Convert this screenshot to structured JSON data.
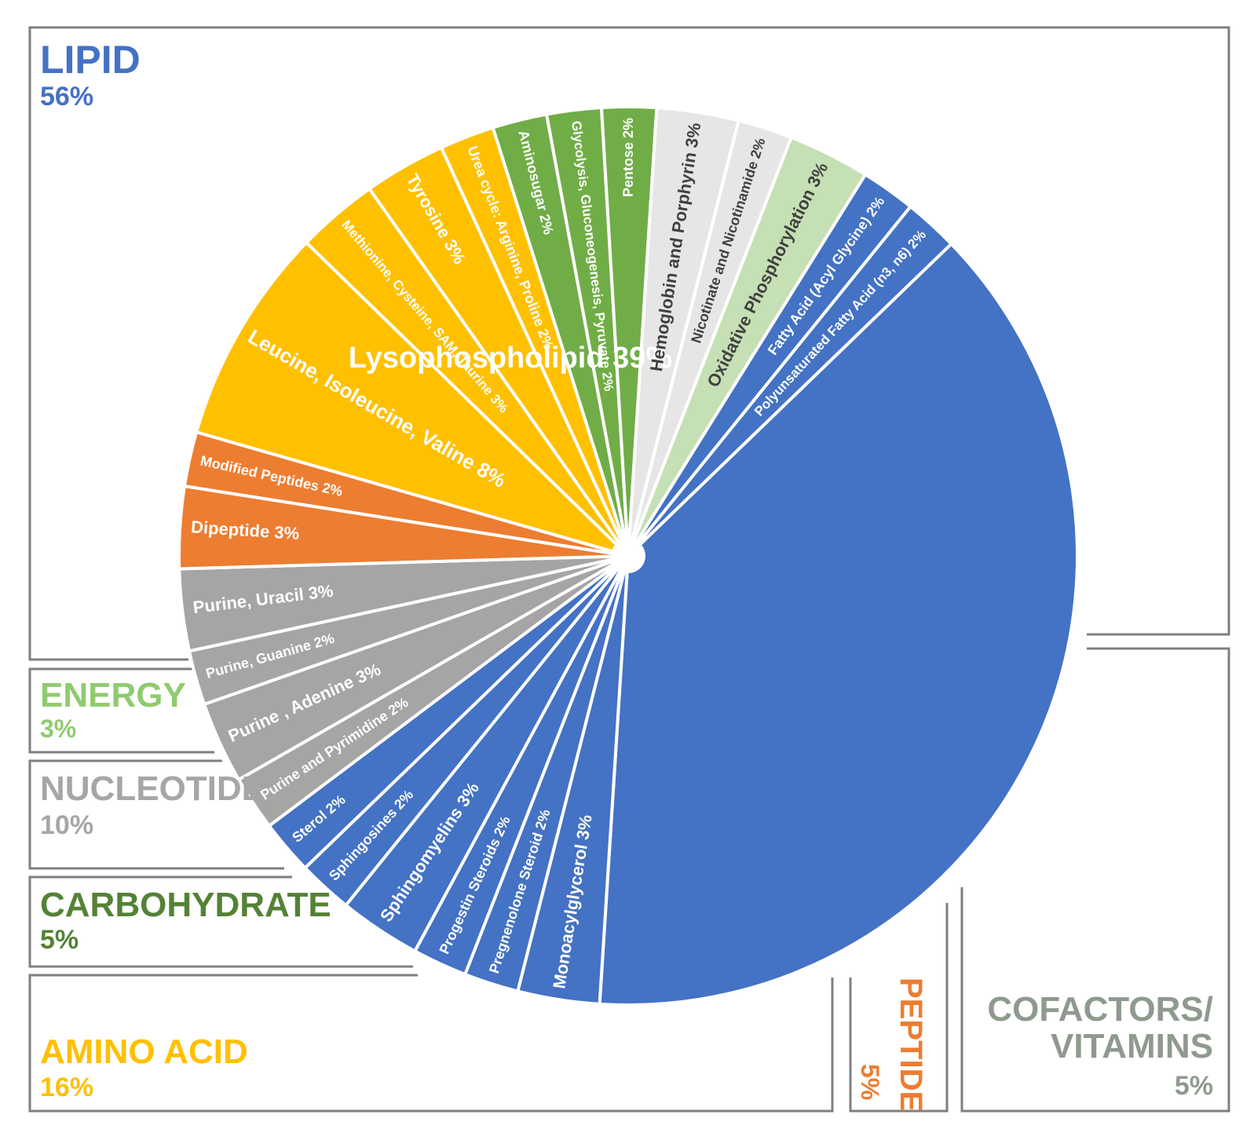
{
  "colors": {
    "lipid": "#4472C4",
    "energy": "#C5E0B4",
    "nucleotide_light": "#E7E6E6",
    "nucleotide_dark": "#A5A5A5",
    "carbohydrate": "#70AD47",
    "amino_acid": "#FFC000",
    "peptide": "#ED7D31",
    "energy_text": "#8FCB6E",
    "nucleotide_text": "#A6A6A6",
    "carbohydrate_text": "#548235",
    "amino_text": "#FFC000",
    "peptide_text": "#ED7D31",
    "cofactor_text": "#8E9A8E",
    "lipid_text": "#4472C4",
    "frame": "#7F7F7F"
  },
  "groups": {
    "lipid": {
      "name": "LIPID",
      "pct": "56%"
    },
    "energy": {
      "name": "ENERGY",
      "pct": "3%"
    },
    "nucleotide": {
      "name": "NUCLEOTIDE",
      "pct": "10%"
    },
    "carbohydrate": {
      "name": "CARBOHYDRATE",
      "pct": "5%"
    },
    "amino_acid": {
      "name": "AMINO ACID",
      "pct": "16%"
    },
    "peptide": {
      "name": "PEPTIDE",
      "pct": "5%"
    },
    "cofactors": {
      "name_line1": "COFACTORS/",
      "name_line2": "VITAMINS",
      "pct": "5%"
    }
  },
  "chart_data": {
    "type": "pie",
    "slices": [
      {
        "label": "Lysophospholipid  39%",
        "value": 39,
        "group": "lipid",
        "color": "#4472C4"
      },
      {
        "label": "Monoacylglycerol 3%",
        "value": 3,
        "group": "lipid",
        "color": "#4472C4"
      },
      {
        "label": "Pregnenolone Steroid 2%",
        "value": 2,
        "group": "lipid",
        "color": "#4472C4"
      },
      {
        "label": "Progestin Steroids 2%",
        "value": 2,
        "group": "lipid",
        "color": "#4472C4"
      },
      {
        "label": "Sphingomyelins 3%",
        "value": 3,
        "group": "lipid",
        "color": "#4472C4"
      },
      {
        "label": "Sphingosines 2%",
        "value": 2,
        "group": "lipid",
        "color": "#4472C4"
      },
      {
        "label": "Sterol 2%",
        "value": 2,
        "group": "lipid",
        "color": "#4472C4"
      },
      {
        "label": "Purine and Pyrimidine 2%",
        "value": 2,
        "group": "nucleotide",
        "color": "#A5A5A5"
      },
      {
        "label": "Purine , Adenine 3%",
        "value": 3,
        "group": "nucleotide",
        "color": "#A5A5A5"
      },
      {
        "label": "Purine, Guanine 2%",
        "value": 2,
        "group": "nucleotide",
        "color": "#A5A5A5"
      },
      {
        "label": "Purine, Uracil 3%",
        "value": 3,
        "group": "nucleotide",
        "color": "#A5A5A5"
      },
      {
        "label": "Dipeptide 3%",
        "value": 3,
        "group": "peptide",
        "color": "#ED7D31"
      },
      {
        "label": "Modified Peptides 2%",
        "value": 2,
        "group": "peptide",
        "color": "#ED7D31"
      },
      {
        "label": "Leucine, Isoleucine, Valine 8%",
        "value": 8,
        "group": "amino_acid",
        "color": "#FFC000"
      },
      {
        "label": "Methionine, Cysteine, SAM, Taurine 3%",
        "value": 3,
        "group": "amino_acid",
        "color": "#FFC000"
      },
      {
        "label": "Tyrosine  3%",
        "value": 3,
        "group": "amino_acid",
        "color": "#FFC000"
      },
      {
        "label": "Urea cycle: Arginine, Proline 2%",
        "value": 2,
        "group": "amino_acid",
        "color": "#FFC000"
      },
      {
        "label": "Aminosugar 2%",
        "value": 2,
        "group": "carbohydrate",
        "color": "#70AD47"
      },
      {
        "label": "Glycolysis, Gluconeogenesis, Pyruvate 2%",
        "value": 2,
        "group": "carbohydrate",
        "color": "#70AD47"
      },
      {
        "label": "Pentose 2%",
        "value": 2,
        "group": "carbohydrate",
        "color": "#70AD47"
      },
      {
        "label": "Hemoglobin and Porphyrin 3%",
        "value": 3,
        "group": "cofactors",
        "color": "#E7E6E6"
      },
      {
        "label": "Nicotinate and Nicotinamide 2%",
        "value": 2,
        "group": "cofactors",
        "color": "#E7E6E6"
      },
      {
        "label": "Oxidative Phosphorylation 3%",
        "value": 3,
        "group": "energy",
        "color": "#C5E0B4"
      },
      {
        "label": "Fatty Acid (Acyl Glycine) 2%",
        "value": 2,
        "group": "lipid",
        "color": "#4472C4"
      },
      {
        "label": "Polyunsaturated Fatty Acid (n3, n6) 2%",
        "value": 2,
        "group": "lipid",
        "color": "#4472C4"
      }
    ]
  }
}
